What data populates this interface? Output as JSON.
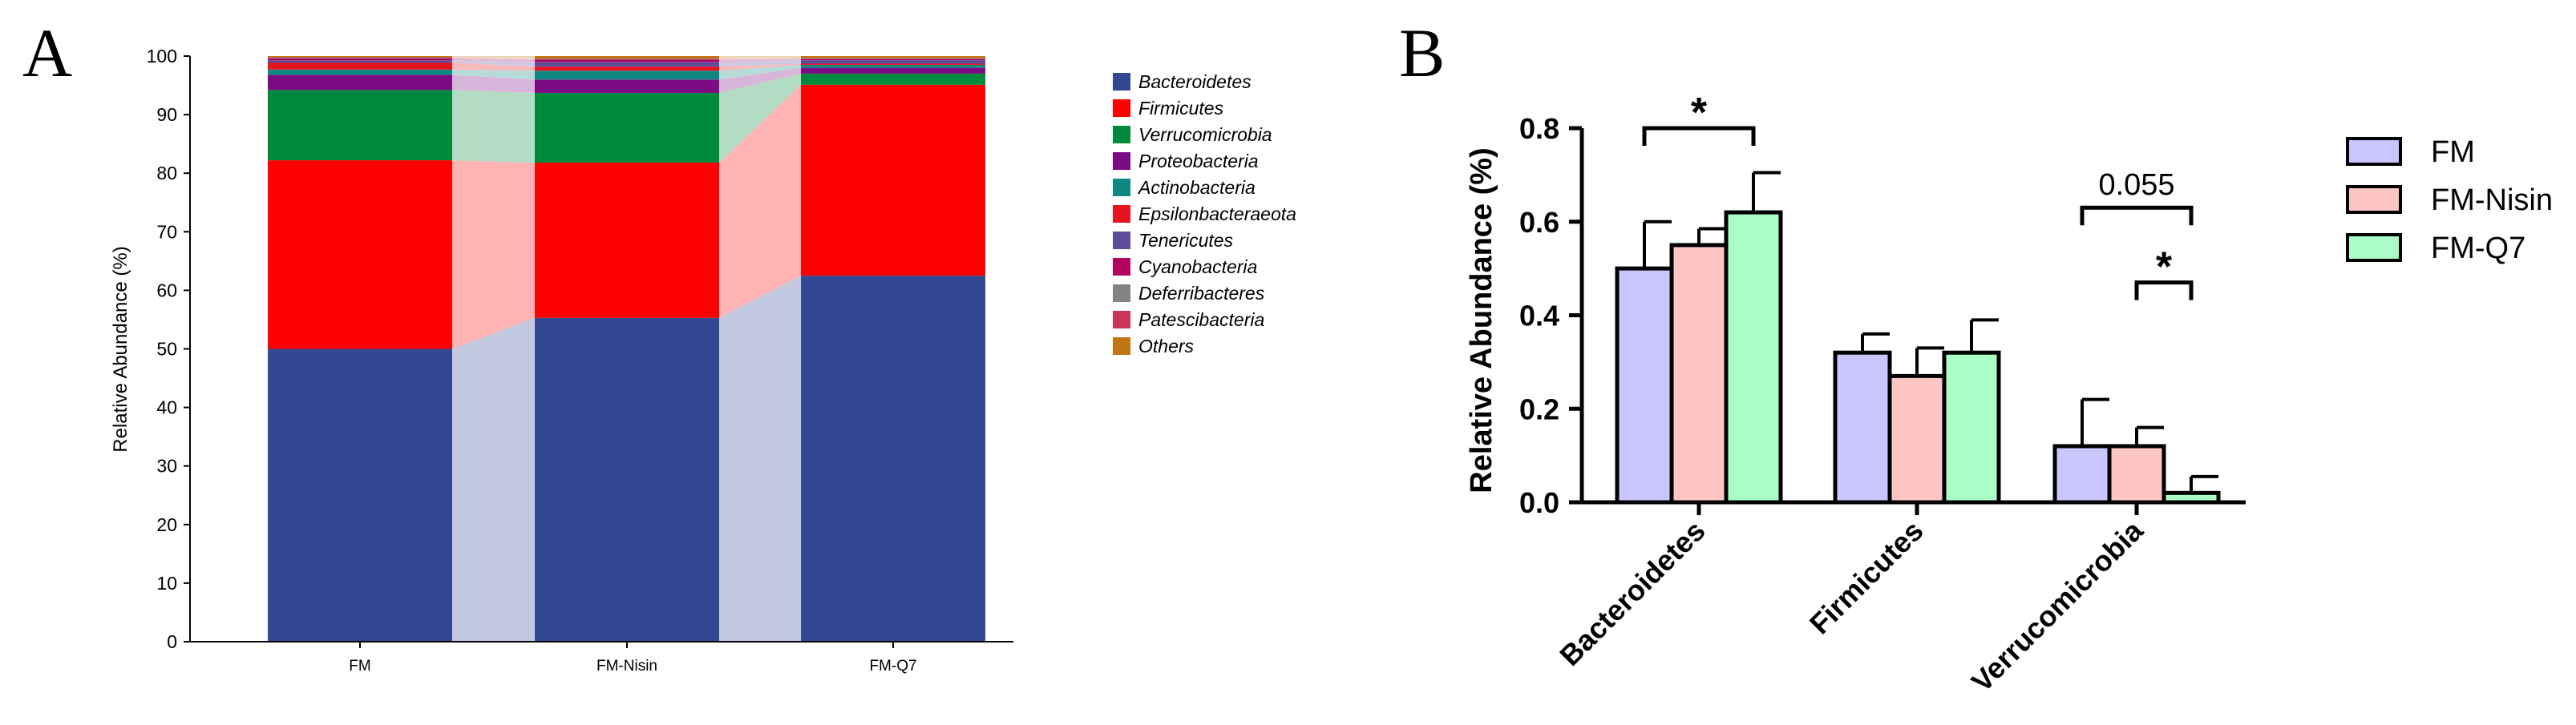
{
  "colors": {
    "Bacteroidetes": "#324893",
    "Firmicutes": "#fe0000",
    "Verrucomicrobia": "#00893a",
    "Proteobacteria": "#7c0c83",
    "Actinobacteria": "#0e8881",
    "Epsilonbacteraeota": "#e7141f",
    "Tenericutes": "#5e4c9b",
    "Cyanobacteria": "#b3045d",
    "Deferribacteres": "#838383",
    "Patescibacteria": "#c9365a",
    "Others": "#c07613",
    "FM": "#c9c5fe",
    "FM-Nisin": "#fec5c5",
    "FM-Q7": "#a9fec5"
  },
  "chart_data": [
    {
      "panel_label": "A",
      "type": "bar",
      "stacked": true,
      "categories": [
        "FM",
        "FM-Nisin",
        "FM-Q7"
      ],
      "ylabel": "Relative Abundance (%)",
      "xlabel": "",
      "ylim": [
        0,
        100
      ],
      "yticks": [
        "0",
        "10",
        "20",
        "30",
        "40",
        "50",
        "60",
        "70",
        "80",
        "90",
        "100"
      ],
      "legend": "right",
      "series": [
        {
          "name": "Bacteroidetes",
          "values": [
            50,
            55.3,
            62.5
          ]
        },
        {
          "name": "Firmicutes",
          "values": [
            32.2,
            26.5,
            32.6
          ]
        },
        {
          "name": "Verrucomicrobia",
          "values": [
            12.0,
            11.9,
            1.9
          ]
        },
        {
          "name": "Proteobacteria",
          "values": [
            2.6,
            2.3,
            1.0
          ]
        },
        {
          "name": "Actinobacteria",
          "values": [
            0.9,
            1.5,
            0.5
          ]
        },
        {
          "name": "Epsilonbacteraeota",
          "values": [
            1.2,
            0.7,
            0.2
          ]
        },
        {
          "name": "Tenericutes",
          "values": [
            0.4,
            0.8,
            0.6
          ]
        },
        {
          "name": "Cyanobacteria",
          "values": [
            0.3,
            0.4,
            0.2
          ]
        },
        {
          "name": "Deferribacteres",
          "values": [
            0.1,
            0.1,
            0.1
          ]
        },
        {
          "name": "Patescibacteria",
          "values": [
            0.1,
            0.1,
            0.1
          ]
        },
        {
          "name": "Others",
          "values": [
            0.2,
            0.4,
            0.3
          ]
        }
      ]
    },
    {
      "panel_label": "B",
      "type": "bar",
      "categories": [
        "Bacteroidetes",
        "Firmicutes",
        "Verrucomicrobia"
      ],
      "ylabel": "Relative Abundance (%)",
      "xlabel": "",
      "ylim": [
        0,
        0.8
      ],
      "yticks": [
        "0.0",
        "0.2",
        "0.4",
        "0.6",
        "0.8"
      ],
      "legend": "right",
      "series": [
        {
          "name": "FM",
          "values": [
            0.5,
            0.32,
            0.12
          ],
          "errors": [
            0.1,
            0.04,
            0.1
          ]
        },
        {
          "name": "FM-Nisin",
          "values": [
            0.55,
            0.27,
            0.12
          ],
          "errors": [
            0.035,
            0.06,
            0.04
          ]
        },
        {
          "name": "FM-Q7",
          "values": [
            0.62,
            0.32,
            0.02
          ],
          "errors": [
            0.085,
            0.07,
            0.035
          ]
        }
      ],
      "annotations": [
        {
          "text": "*",
          "category": "Bacteroidetes",
          "from_series": "FM",
          "to_series": "FM-Q7",
          "y": 0.8
        },
        {
          "text": "0.055",
          "category": "Verrucomicrobia",
          "from_series": "FM",
          "to_series": "FM-Q7",
          "y": 0.63
        },
        {
          "text": "*",
          "category": "Verrucomicrobia",
          "from_series": "FM-Nisin",
          "to_series": "FM-Q7",
          "y": 0.47
        }
      ]
    }
  ]
}
